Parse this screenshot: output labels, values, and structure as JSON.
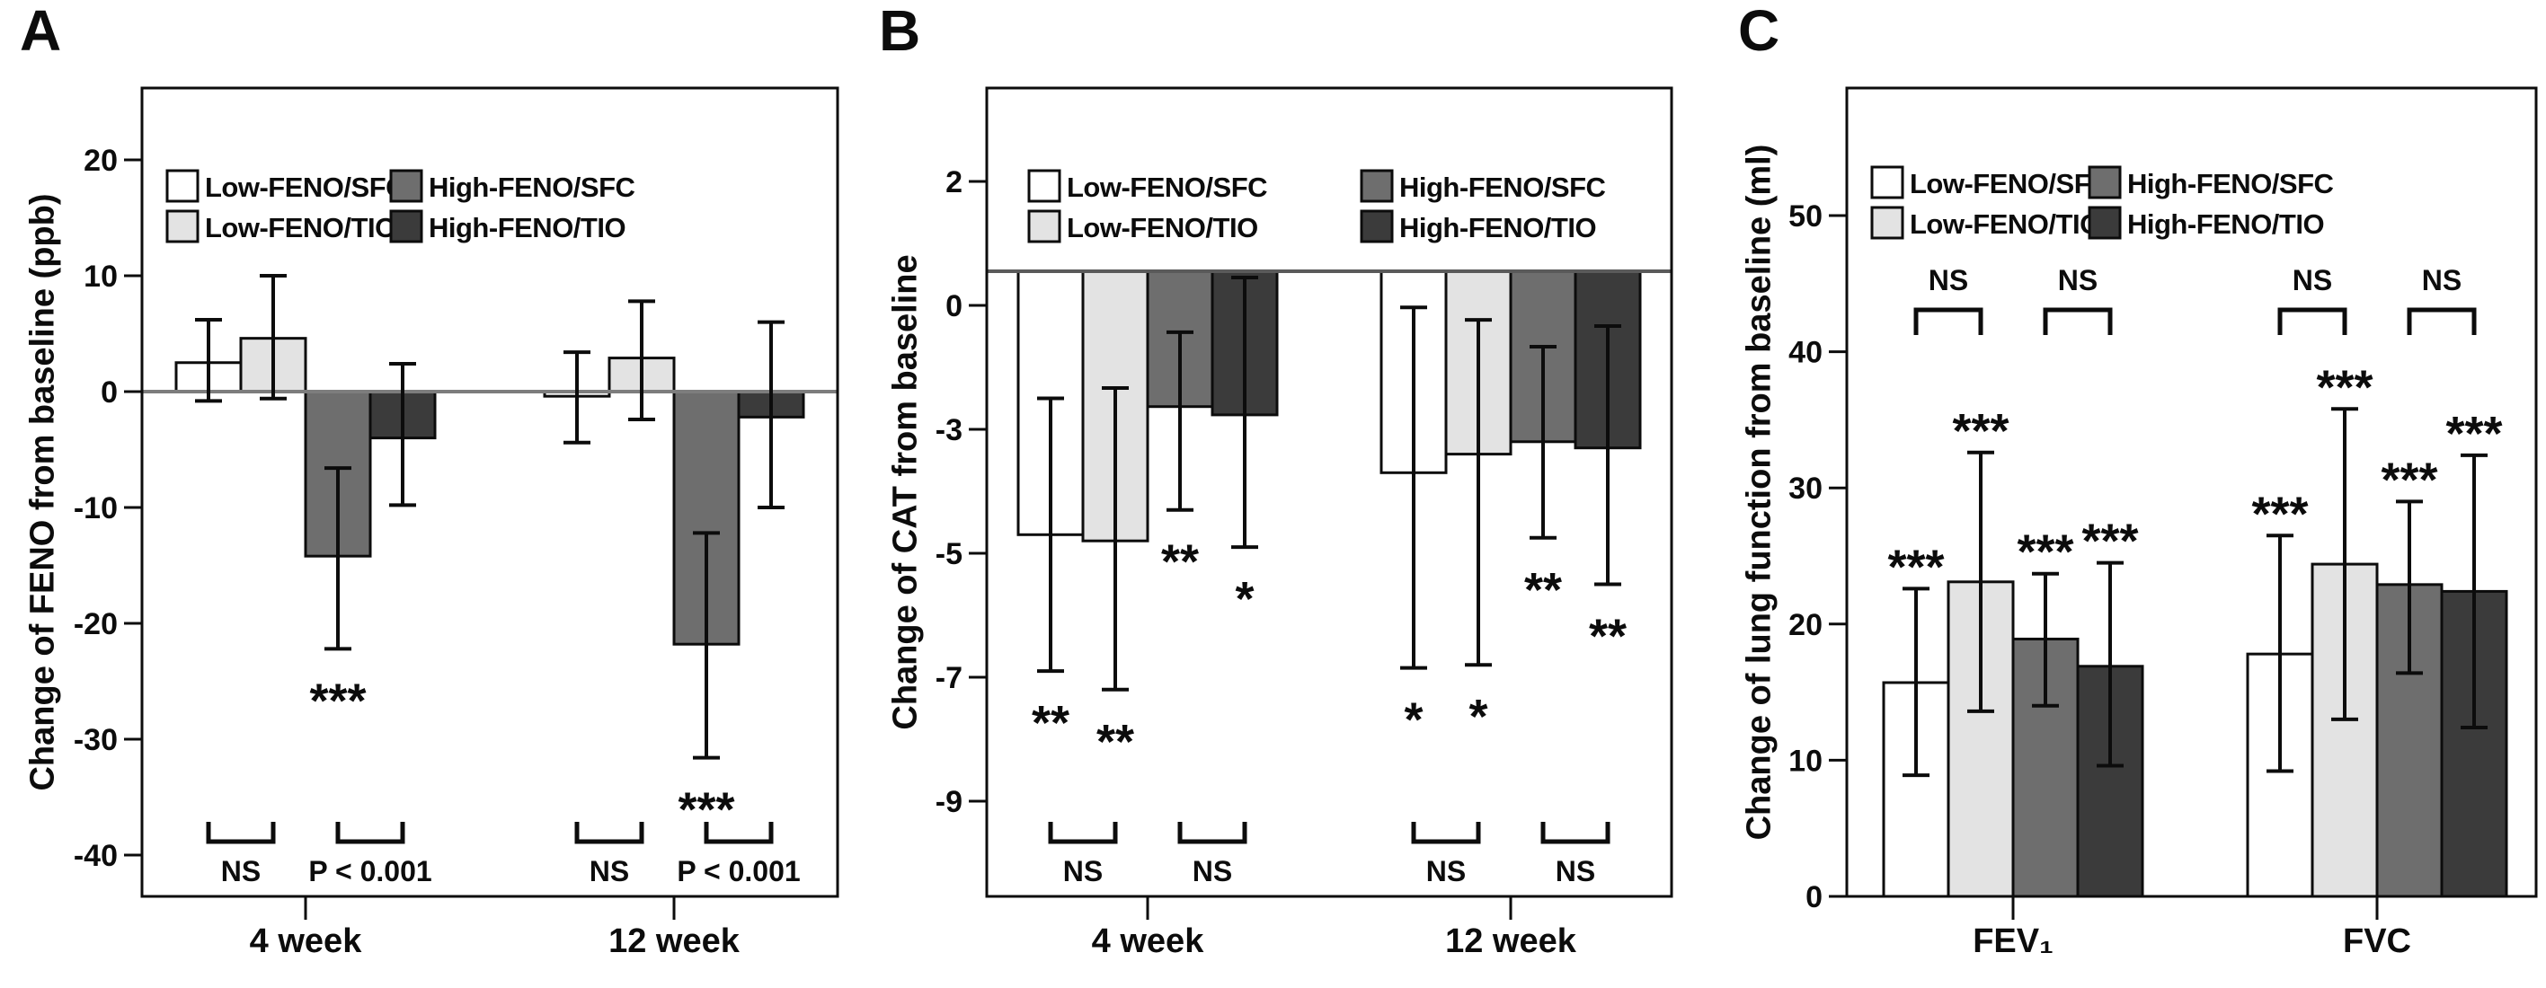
{
  "legend": {
    "entries": [
      {
        "label": "Low-FENO/SFC",
        "color": "#ffffff"
      },
      {
        "label": "Low-FENO/TIO",
        "color": "#e3e3e3"
      },
      {
        "label": "High-FENO/SFC",
        "color": "#6e6e6e"
      },
      {
        "label": "High-FENO/TIO",
        "color": "#3b3b3b"
      }
    ]
  },
  "chart_data": [
    {
      "type": "bar",
      "panel_label": "A",
      "ylabel": "Change of FENO from baseline (ppb)",
      "yticks": [
        20,
        10,
        0,
        -10,
        -20,
        -30,
        -40
      ],
      "categories": [
        "4 week",
        "12 week"
      ],
      "baseline": 0,
      "baseline_line_color": "#7d7d7d",
      "legend_position": "top-inside",
      "series": [
        {
          "name": "Low-FENO/SFC",
          "values": [
            2.5,
            -0.4
          ],
          "err_lo": [
            -0.8,
            -4.4
          ],
          "err_hi": [
            6.2,
            3.4
          ],
          "sig": [
            "",
            ""
          ]
        },
        {
          "name": "Low-FENO/TIO",
          "values": [
            4.6,
            2.9
          ],
          "err_lo": [
            -0.6,
            -2.4
          ],
          "err_hi": [
            10.0,
            7.8
          ],
          "sig": [
            "",
            ""
          ]
        },
        {
          "name": "High-FENO/SFC",
          "values": [
            -14.2,
            -21.8
          ],
          "err_lo": [
            -22.2,
            -31.6
          ],
          "err_hi": [
            -6.6,
            -12.2
          ],
          "sig": [
            "***",
            "***"
          ]
        },
        {
          "name": "High-FENO/TIO",
          "values": [
            -4.0,
            -2.2
          ],
          "err_lo": [
            -9.8,
            -10.0
          ],
          "err_hi": [
            2.4,
            6.0
          ],
          "sig": [
            "",
            ""
          ]
        }
      ],
      "comparisons": [
        {
          "category": 0,
          "bars": [
            0,
            1
          ],
          "label": "NS"
        },
        {
          "category": 0,
          "bars": [
            2,
            3
          ],
          "label": "P < 0.001"
        },
        {
          "category": 1,
          "bars": [
            0,
            1
          ],
          "label": "NS"
        },
        {
          "category": 1,
          "bars": [
            2,
            3
          ],
          "label": "P < 0.001"
        }
      ],
      "comparison_side": "bottom"
    },
    {
      "type": "bar",
      "panel_label": "B",
      "ylabel": "Change of CAT from baseline",
      "yticks": [
        2,
        0,
        -3,
        -5,
        -7,
        -9
      ],
      "categories": [
        "4 week",
        "12 week"
      ],
      "baseline": 0.55,
      "baseline_line_color": "#5a5a5a",
      "legend_position": "top-inside",
      "series": [
        {
          "name": "Low-FENO/SFC",
          "values": [
            -4.7,
            -3.7
          ],
          "err_lo": [
            -6.9,
            -6.85
          ],
          "err_hi": [
            -2.25,
            -0.05
          ],
          "sig": [
            "**",
            "*"
          ]
        },
        {
          "name": "Low-FENO/TIO",
          "values": [
            -4.8,
            -3.4
          ],
          "err_lo": [
            -7.2,
            -6.8
          ],
          "err_hi": [
            -2.0,
            -0.35
          ],
          "sig": [
            "**",
            "*"
          ]
        },
        {
          "name": "High-FENO/SFC",
          "values": [
            -2.45,
            -3.2
          ],
          "err_lo": [
            -4.3,
            -4.75
          ],
          "err_hi": [
            -0.65,
            -1.0
          ],
          "sig": [
            "**",
            "**"
          ]
        },
        {
          "name": "High-FENO/TIO",
          "values": [
            -2.65,
            -3.3
          ],
          "err_lo": [
            -4.9,
            -5.5
          ],
          "err_hi": [
            0.45,
            -0.5
          ],
          "sig": [
            "*",
            "**"
          ]
        }
      ],
      "comparisons": [
        {
          "category": 0,
          "bars": [
            0,
            1
          ],
          "label": "NS"
        },
        {
          "category": 0,
          "bars": [
            2,
            3
          ],
          "label": "NS"
        },
        {
          "category": 1,
          "bars": [
            0,
            1
          ],
          "label": "NS"
        },
        {
          "category": 1,
          "bars": [
            2,
            3
          ],
          "label": "NS"
        }
      ],
      "comparison_side": "bottom"
    },
    {
      "type": "bar",
      "panel_label": "C",
      "ylabel": "Change of lung function from baseline (ml)",
      "yticks": [
        50,
        40,
        30,
        20,
        10,
        0
      ],
      "categories": [
        "FEV₁",
        "FVC"
      ],
      "baseline": 0,
      "baseline_line_color": null,
      "legend_position": "top-inside",
      "series": [
        {
          "name": "Low-FENO/SFC",
          "values": [
            15.7,
            17.8
          ],
          "err_lo": [
            8.9,
            9.2
          ],
          "err_hi": [
            22.6,
            26.5
          ],
          "sig": [
            "***",
            "***"
          ]
        },
        {
          "name": "Low-FENO/TIO",
          "values": [
            23.1,
            24.4
          ],
          "err_lo": [
            13.6,
            13.0
          ],
          "err_hi": [
            32.6,
            35.8
          ],
          "sig": [
            "***",
            "***"
          ]
        },
        {
          "name": "High-FENO/SFC",
          "values": [
            18.9,
            22.9
          ],
          "err_lo": [
            14.0,
            16.4
          ],
          "err_hi": [
            23.7,
            29.0
          ],
          "sig": [
            "***",
            "***"
          ]
        },
        {
          "name": "High-FENO/TIO",
          "values": [
            16.9,
            22.4
          ],
          "err_lo": [
            9.6,
            12.4
          ],
          "err_hi": [
            24.5,
            32.4
          ],
          "sig": [
            "***",
            "***"
          ]
        }
      ],
      "comparisons": [
        {
          "category": 0,
          "bars": [
            0,
            1
          ],
          "label": "NS"
        },
        {
          "category": 0,
          "bars": [
            2,
            3
          ],
          "label": "NS"
        },
        {
          "category": 1,
          "bars": [
            0,
            1
          ],
          "label": "NS"
        },
        {
          "category": 1,
          "bars": [
            2,
            3
          ],
          "label": "NS"
        }
      ],
      "comparison_side": "top"
    }
  ]
}
